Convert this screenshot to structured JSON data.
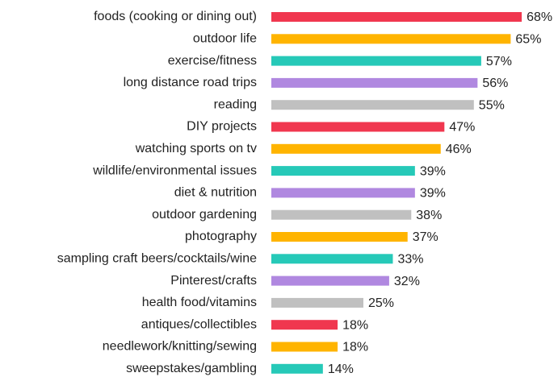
{
  "chart_data": {
    "type": "barh",
    "categories": [
      "foods (cooking or dining out)",
      "outdoor life",
      "exercise/fitness",
      "long distance road trips",
      "reading",
      "DIY projects",
      "watching sports on tv",
      "wildlife/environmental issues",
      "diet & nutrition",
      "outdoor gardening",
      "photography",
      "sampling craft beers/cocktails/wine",
      "Pinterest/crafts",
      "health food/vitamins",
      "antiques/collectibles",
      "needlework/knitting/sewing",
      "sweepstakes/gambling"
    ],
    "values": [
      68,
      65,
      57,
      56,
      55,
      47,
      46,
      39,
      39,
      38,
      37,
      33,
      32,
      25,
      18,
      18,
      14
    ],
    "value_labels": [
      "68%",
      "65%",
      "57%",
      "56%",
      "55%",
      "47%",
      "46%",
      "39%",
      "39%",
      "38%",
      "37%",
      "33%",
      "32%",
      "25%",
      "18%",
      "18%",
      "14%"
    ],
    "colors": [
      "#f0374f",
      "#ffb400",
      "#26c9b8",
      "#b088e0",
      "#c0c0c0",
      "#f0374f",
      "#ffb400",
      "#26c9b8",
      "#b088e0",
      "#c0c0c0",
      "#ffb400",
      "#26c9b8",
      "#b088e0",
      "#c0c0c0",
      "#f0374f",
      "#ffb400",
      "#26c9b8"
    ]
  }
}
